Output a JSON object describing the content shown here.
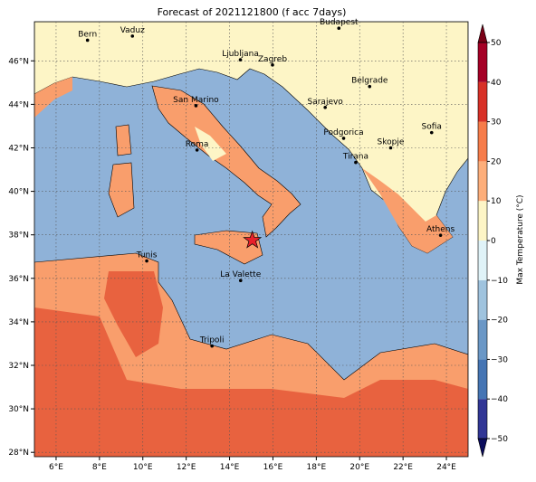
{
  "chart_data": {
    "type": "map",
    "title": "Forecast of 2021121800 (f acc 7days)",
    "xlim": [
      5,
      25
    ],
    "ylim": [
      27.8,
      47.8
    ],
    "xticks": [
      {
        "value": 6,
        "label": "6°E"
      },
      {
        "value": 8,
        "label": "8°E"
      },
      {
        "value": 10,
        "label": "10°E"
      },
      {
        "value": 12,
        "label": "12°E"
      },
      {
        "value": 14,
        "label": "14°E"
      },
      {
        "value": 16,
        "label": "16°E"
      },
      {
        "value": 18,
        "label": "18°E"
      },
      {
        "value": 20,
        "label": "20°E"
      },
      {
        "value": 22,
        "label": "22°E"
      },
      {
        "value": 24,
        "label": "24°E"
      }
    ],
    "yticks": [
      {
        "value": 28,
        "label": "28°N"
      },
      {
        "value": 30,
        "label": "30°N"
      },
      {
        "value": 32,
        "label": "32°N"
      },
      {
        "value": 34,
        "label": "34°N"
      },
      {
        "value": 36,
        "label": "36°N"
      },
      {
        "value": 38,
        "label": "38°N"
      },
      {
        "value": 40,
        "label": "40°N"
      },
      {
        "value": 42,
        "label": "42°N"
      },
      {
        "value": 44,
        "label": "44°N"
      },
      {
        "value": 46,
        "label": "46°N"
      }
    ],
    "grid": true,
    "cities": [
      {
        "name": "Bern",
        "lon": 7.45,
        "lat": 46.95
      },
      {
        "name": "Vaduz",
        "lon": 9.52,
        "lat": 47.14
      },
      {
        "name": "Ljubljana",
        "lon": 14.5,
        "lat": 46.05
      },
      {
        "name": "Zagreb",
        "lon": 15.98,
        "lat": 45.81
      },
      {
        "name": "Budapest",
        "lon": 19.04,
        "lat": 47.5
      },
      {
        "name": "Belgrade",
        "lon": 20.46,
        "lat": 44.82
      },
      {
        "name": "San Marino",
        "lon": 12.45,
        "lat": 43.94
      },
      {
        "name": "Sarajevo",
        "lon": 18.41,
        "lat": 43.86
      },
      {
        "name": "Roma",
        "lon": 12.5,
        "lat": 41.9
      },
      {
        "name": "Podgorica",
        "lon": 19.26,
        "lat": 42.44
      },
      {
        "name": "Skopje",
        "lon": 21.43,
        "lat": 42.0
      },
      {
        "name": "Sofia",
        "lon": 23.32,
        "lat": 42.7
      },
      {
        "name": "Tirana",
        "lon": 19.82,
        "lat": 41.33
      },
      {
        "name": "Athens",
        "lon": 23.73,
        "lat": 37.98
      },
      {
        "name": "Tunis",
        "lon": 10.18,
        "lat": 36.8
      },
      {
        "name": "La Valette",
        "lon": 14.51,
        "lat": 35.9
      },
      {
        "name": "Tripoli",
        "lon": 13.19,
        "lat": 32.89
      }
    ],
    "marker": {
      "lon": 15.05,
      "lat": 37.75,
      "color": "#e8202a"
    },
    "colorbar": {
      "label": "Max Temperature (°C)",
      "ticks": [
        {
          "value": -50,
          "label": "−50"
        },
        {
          "value": -40,
          "label": "−40"
        },
        {
          "value": -30,
          "label": "−30"
        },
        {
          "value": -20,
          "label": "−20"
        },
        {
          "value": -10,
          "label": "−10"
        },
        0,
        10,
        20,
        30,
        40,
        50
      ],
      "colors": [
        "#313695",
        "#4575b4",
        "#6a97c6",
        "#9fc3de",
        "#e0f3f8",
        "#fdf5c6",
        "#fdae7a",
        "#f67c4a",
        "#d73027",
        "#a50026"
      ],
      "under_color": "#0b0c5c",
      "over_color": "#7a0016"
    }
  }
}
